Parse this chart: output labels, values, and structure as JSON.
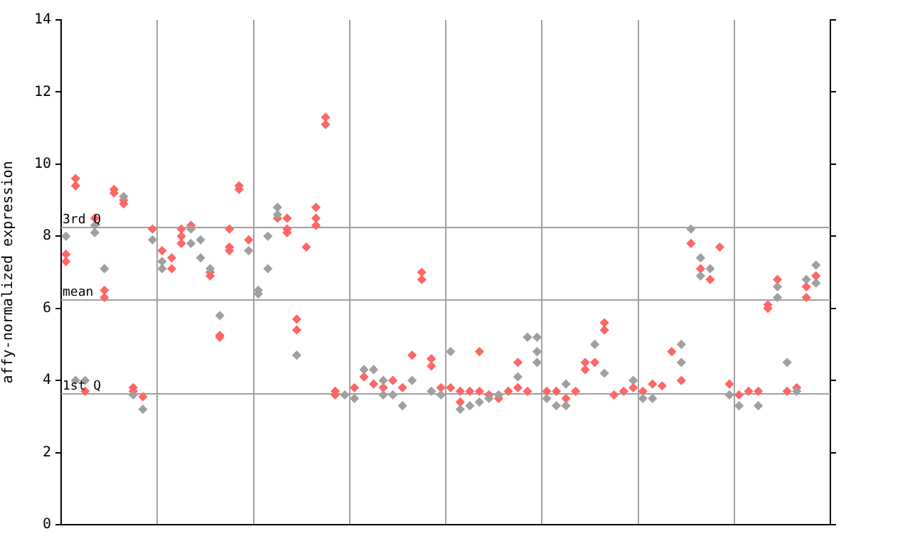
{
  "chart_data": {
    "type": "scatter",
    "ylabel": "affy-normalized expression",
    "categories": [
      null,
      null,
      null,
      null,
      null,
      null,
      null,
      null,
      null,
      null,
      null,
      null,
      null,
      null,
      null,
      null,
      null,
      null,
      null,
      null,
      null,
      null,
      null,
      null,
      null,
      null,
      null,
      null,
      null,
      null,
      null,
      null,
      null,
      null,
      null,
      null,
      null,
      null,
      null,
      null,
      null,
      null,
      null,
      null,
      null,
      null,
      null,
      null,
      null,
      null,
      null,
      null,
      null,
      null,
      null,
      null,
      null,
      null,
      null,
      null,
      null,
      null,
      null,
      null,
      null,
      null,
      null,
      null,
      null,
      null,
      null,
      null,
      null,
      null,
      null,
      null,
      null,
      null,
      null,
      null
    ],
    "ylim": [
      0,
      14
    ],
    "yticks": [
      0,
      2,
      4,
      6,
      8,
      10,
      12,
      14
    ],
    "tick_labels": "y",
    "grid": "x",
    "legend": false,
    "marker": "diamond",
    "ref_lines": [
      {
        "axis": "y",
        "value": 8.24,
        "label": "3rd Q",
        "color": "#a0a0a0"
      },
      {
        "axis": "y",
        "value": 6.23,
        "label": "mean",
        "color": "#a0a0a0"
      },
      {
        "axis": "y",
        "value": 3.63,
        "label": "1st Q",
        "color": "#a0a0a0"
      }
    ],
    "series": [
      {
        "color": "#a0a0a0",
        "values": [
          8.0,
          4.0,
          4.0,
          8.1,
          7.1,
          null,
          9.1,
          3.6,
          3.2,
          7.9,
          7.3,
          null,
          null,
          8.2,
          7.9,
          7.1,
          5.8,
          null,
          null,
          7.6,
          6.5,
          8.0,
          8.8,
          null,
          4.7,
          null,
          null,
          null,
          null,
          3.6,
          3.5,
          4.3,
          4.3,
          4.0,
          3.6,
          3.3,
          4.0,
          null,
          3.7,
          3.6,
          4.8,
          3.2,
          3.3,
          3.4,
          3.5,
          3.6,
          null,
          4.1,
          5.2,
          5.2,
          3.5,
          3.3,
          3.9,
          null,
          null,
          5.0,
          4.2,
          null,
          null,
          4.0,
          3.5,
          3.5,
          null,
          null,
          5.0,
          8.2,
          7.4,
          7.1,
          null,
          3.6,
          3.3,
          null,
          3.3,
          null,
          6.6,
          4.5,
          3.7,
          6.8,
          7.2,
          null
        ]
      },
      {
        "color": "#a0a0a0",
        "values": [
          null,
          null,
          null,
          8.3,
          null,
          null,
          null,
          null,
          null,
          null,
          7.1,
          null,
          null,
          7.8,
          7.4,
          null,
          null,
          null,
          null,
          null,
          6.4,
          7.1,
          8.6,
          null,
          null,
          null,
          null,
          null,
          null,
          null,
          null,
          null,
          null,
          3.6,
          null,
          null,
          null,
          null,
          null,
          null,
          null,
          null,
          null,
          null,
          null,
          null,
          null,
          null,
          null,
          4.8,
          null,
          null,
          3.3,
          null,
          null,
          null,
          null,
          null,
          null,
          null,
          null,
          null,
          null,
          null,
          4.5,
          null,
          6.9,
          null,
          null,
          null,
          null,
          null,
          null,
          null,
          6.3,
          null,
          null,
          null,
          6.7,
          null
        ]
      },
      {
        "color": "#a0a0a0",
        "values": [
          null,
          null,
          null,
          null,
          null,
          null,
          null,
          null,
          null,
          null,
          null,
          null,
          null,
          null,
          null,
          null,
          null,
          null,
          null,
          null,
          null,
          null,
          null,
          null,
          null,
          null,
          null,
          null,
          null,
          null,
          null,
          null,
          null,
          null,
          null,
          null,
          null,
          null,
          null,
          null,
          null,
          null,
          null,
          null,
          null,
          null,
          null,
          null,
          null,
          4.5,
          null,
          null,
          null,
          null,
          null,
          null,
          null,
          null,
          null,
          null,
          null,
          null,
          null,
          null,
          null,
          null,
          null,
          null,
          null,
          null,
          null,
          null,
          null,
          null,
          null,
          null,
          null,
          null,
          null,
          null
        ]
      },
      {
        "color": "#ff6666",
        "values": [
          7.5,
          9.6,
          3.7,
          8.5,
          6.5,
          9.3,
          9.0,
          3.8,
          3.55,
          8.2,
          7.6,
          7.4,
          8.2,
          8.3,
          null,
          7.0,
          5.25,
          8.2,
          9.4,
          7.9,
          null,
          null,
          8.5,
          8.5,
          5.7,
          7.7,
          8.8,
          11.3,
          3.7,
          null,
          3.8,
          4.1,
          3.9,
          3.8,
          4.0,
          3.8,
          4.7,
          7.0,
          4.6,
          3.8,
          3.8,
          3.7,
          3.7,
          4.8,
          3.6,
          3.5,
          3.7,
          4.5,
          3.7,
          null,
          3.7,
          3.7,
          3.5,
          3.7,
          4.5,
          4.5,
          5.6,
          3.6,
          3.7,
          3.8,
          3.7,
          3.9,
          3.85,
          4.8,
          4.0,
          7.8,
          7.1,
          6.8,
          7.7,
          3.9,
          3.6,
          3.7,
          3.7,
          6.1,
          6.8,
          3.7,
          3.8,
          6.6,
          6.9,
          null
        ]
      },
      {
        "color": "#ff6666",
        "values": [
          7.3,
          9.4,
          null,
          null,
          6.3,
          9.2,
          8.9,
          3.7,
          null,
          null,
          null,
          7.1,
          8.0,
          null,
          null,
          6.9,
          5.2,
          7.7,
          9.3,
          null,
          null,
          null,
          null,
          8.2,
          5.4,
          null,
          8.5,
          11.1,
          3.6,
          null,
          null,
          null,
          null,
          null,
          null,
          null,
          null,
          6.8,
          4.4,
          null,
          null,
          3.4,
          null,
          3.7,
          null,
          null,
          null,
          3.8,
          null,
          null,
          null,
          null,
          null,
          null,
          4.3,
          null,
          5.4,
          null,
          null,
          null,
          null,
          null,
          null,
          null,
          null,
          null,
          null,
          null,
          null,
          null,
          null,
          null,
          null,
          6.0,
          null,
          null,
          null,
          6.3,
          null,
          null
        ]
      },
      {
        "color": "#ff6666",
        "values": [
          null,
          null,
          null,
          null,
          null,
          null,
          null,
          null,
          null,
          null,
          null,
          null,
          7.8,
          null,
          null,
          null,
          null,
          7.6,
          null,
          null,
          null,
          null,
          null,
          8.1,
          null,
          null,
          8.3,
          null,
          null,
          null,
          null,
          null,
          null,
          null,
          null,
          null,
          null,
          null,
          null,
          null,
          null,
          null,
          null,
          null,
          null,
          null,
          null,
          null,
          null,
          null,
          null,
          null,
          null,
          null,
          null,
          null,
          null,
          null,
          null,
          null,
          null,
          null,
          null,
          null,
          null,
          null,
          null,
          null,
          null,
          null,
          null,
          null,
          null,
          null,
          null,
          null,
          null,
          null,
          null,
          null
        ]
      }
    ]
  }
}
